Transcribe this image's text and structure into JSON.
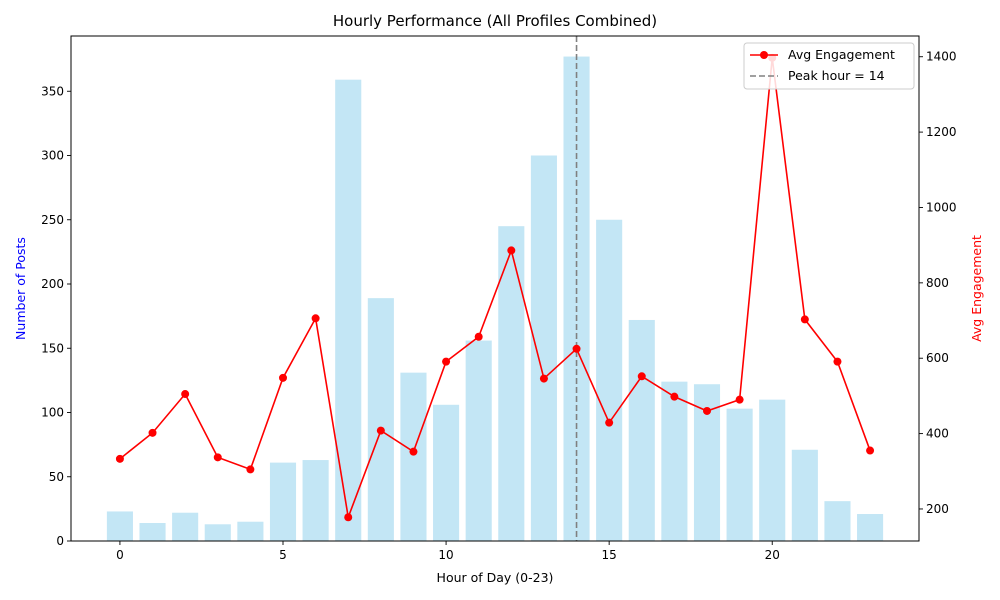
{
  "chart_data": {
    "type": "bar",
    "title": "Hourly Performance (All Profiles Combined)",
    "xlabel": "Hour of Day (0-23)",
    "ylabel_left": "Number of Posts",
    "ylabel_right": "Avg Engagement",
    "x": [
      0,
      1,
      2,
      3,
      4,
      5,
      6,
      7,
      8,
      9,
      10,
      11,
      12,
      13,
      14,
      15,
      16,
      17,
      18,
      19,
      20,
      21,
      22,
      23
    ],
    "xlim": [
      -1.5,
      24.5
    ],
    "xticks": [
      0,
      5,
      10,
      15,
      20
    ],
    "ylim_left": [
      0,
      393
    ],
    "yticks_left": [
      0,
      50,
      100,
      150,
      200,
      250,
      300,
      350
    ],
    "ylim_right": [
      115,
      1455
    ],
    "yticks_right": [
      200,
      400,
      600,
      800,
      1000,
      1200,
      1400
    ],
    "series": [
      {
        "name": "",
        "kind": "bar",
        "axis": "left",
        "color": "#87ceeb",
        "values": [
          23,
          14,
          22,
          13,
          15,
          61,
          63,
          359,
          189,
          131,
          106,
          156,
          245,
          300,
          377,
          250,
          172,
          124,
          122,
          103,
          110,
          71,
          31,
          21
        ]
      },
      {
        "name": "Avg Engagement",
        "kind": "line",
        "axis": "right",
        "color": "#ff0000",
        "values": [
          333,
          402,
          505,
          337,
          305,
          548,
          706,
          178,
          408,
          352,
          591,
          657,
          886,
          546,
          625,
          429,
          552,
          498,
          460,
          490,
          1397,
          703,
          591,
          355
        ]
      }
    ],
    "reference_line": {
      "label": "Peak hour = 14",
      "x": 14,
      "color": "#808080",
      "style": "dashed"
    },
    "legend": {
      "placement": "top-right",
      "entries": [
        "Avg Engagement",
        "Peak hour = 14"
      ]
    },
    "grid": false,
    "colors": {
      "left_label": "#0000ff",
      "right_label": "#ff0000"
    }
  }
}
